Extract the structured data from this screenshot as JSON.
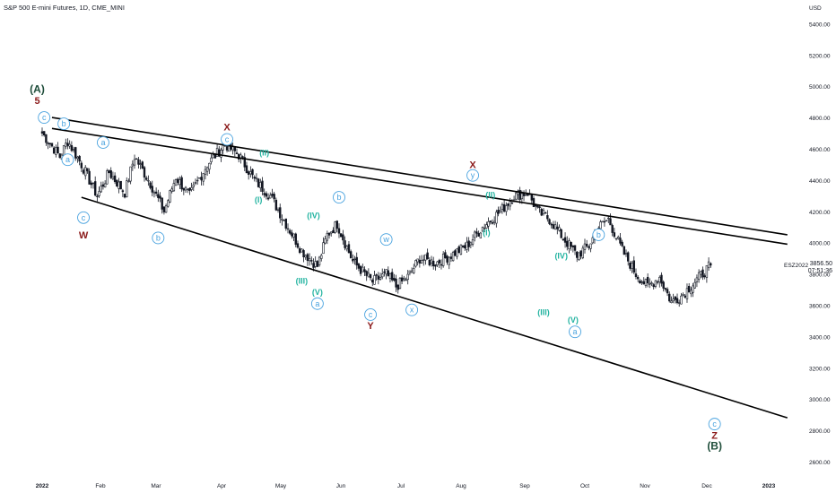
{
  "chart_data": {
    "type": "candlestick",
    "title": "S&P 500 E-mini Futures, 1D, CME_MINI",
    "currency": "USD",
    "ticker": "ESZ2022",
    "last_price": "3856.50",
    "countdown": "07:51:36",
    "x_ticks": [
      "2022",
      "Feb",
      "Mar",
      "Apr",
      "May",
      "Jun",
      "Jul",
      "Aug",
      "Sep",
      "Oct",
      "Nov",
      "Dec",
      "2023"
    ],
    "y_ticks": [
      "5400.00",
      "5200.00",
      "5000.00",
      "4800.00",
      "4600.00",
      "4400.00",
      "4200.00",
      "4000.00",
      "3800.00",
      "3600.00",
      "3400.00",
      "3200.00",
      "3000.00",
      "2800.00",
      "2600.00"
    ],
    "ylim": [
      2600,
      5400
    ],
    "anchors": [
      [
        0,
        4700
      ],
      [
        9,
        4550
      ],
      [
        13,
        4650
      ],
      [
        20,
        4500
      ],
      [
        28,
        4300
      ],
      [
        34,
        4450
      ],
      [
        42,
        4320
      ],
      [
        47,
        4550
      ],
      [
        55,
        4380
      ],
      [
        62,
        4200
      ],
      [
        68,
        4420
      ],
      [
        75,
        4300
      ],
      [
        84,
        4500
      ],
      [
        93,
        4630
      ],
      [
        100,
        4560
      ],
      [
        108,
        4400
      ],
      [
        116,
        4300
      ],
      [
        125,
        4100
      ],
      [
        132,
        3950
      ],
      [
        140,
        3850
      ],
      [
        145,
        4050
      ],
      [
        150,
        4120
      ],
      [
        158,
        3880
      ],
      [
        168,
        3750
      ],
      [
        175,
        3800
      ],
      [
        180,
        3720
      ],
      [
        186,
        3780
      ],
      [
        192,
        3900
      ],
      [
        200,
        3870
      ],
      [
        208,
        3920
      ],
      [
        216,
        3980
      ],
      [
        224,
        4100
      ],
      [
        233,
        4200
      ],
      [
        240,
        4300
      ],
      [
        247,
        4320
      ],
      [
        252,
        4200
      ],
      [
        258,
        4150
      ],
      [
        265,
        4030
      ],
      [
        272,
        3920
      ],
      [
        278,
        3980
      ],
      [
        283,
        4100
      ],
      [
        288,
        4150
      ],
      [
        295,
        3950
      ],
      [
        302,
        3800
      ],
      [
        308,
        3720
      ],
      [
        314,
        3780
      ],
      [
        320,
        3620
      ],
      [
        325,
        3660
      ],
      [
        332,
        3750
      ],
      [
        340,
        3856
      ]
    ],
    "lines": [
      {
        "name": "upper-trend",
        "points": [
          [
            5,
            4800
          ],
          [
            379,
            4050
          ]
        ]
      },
      {
        "name": "mid-trend",
        "points": [
          [
            5,
            4730
          ],
          [
            379,
            3990
          ]
        ]
      },
      {
        "name": "lower-trend",
        "points": [
          [
            20,
            4290
          ],
          [
            379,
            2880
          ]
        ]
      }
    ],
    "labels": [
      {
        "text": "(A)",
        "day": -2.5,
        "price": 4980,
        "color": "#1e4d3a",
        "style": "plain",
        "size": 12
      },
      {
        "text": "5",
        "day": -2.5,
        "price": 4910,
        "color": "#8b1a1a",
        "style": "plain",
        "size": 11
      },
      {
        "text": "c",
        "day": 1,
        "price": 4800,
        "color": "#4aa3df",
        "style": "circle",
        "size": 9
      },
      {
        "text": "b",
        "day": 11,
        "price": 4760,
        "color": "#4aa3df",
        "style": "circle",
        "size": 9
      },
      {
        "text": "a",
        "day": 13,
        "price": 4530,
        "color": "#4aa3df",
        "style": "circle",
        "size": 9
      },
      {
        "text": "a",
        "day": 31,
        "price": 4640,
        "color": "#4aa3df",
        "style": "circle",
        "size": 9
      },
      {
        "text": "c",
        "day": 21,
        "price": 4160,
        "color": "#4aa3df",
        "style": "circle",
        "size": 9
      },
      {
        "text": "W",
        "day": 21,
        "price": 4050,
        "color": "#8b1a1a",
        "style": "plain",
        "size": 11
      },
      {
        "text": "b",
        "day": 59,
        "price": 4030,
        "color": "#4aa3df",
        "style": "circle",
        "size": 9
      },
      {
        "text": "X",
        "day": 94,
        "price": 4740,
        "color": "#8b1a1a",
        "style": "plain",
        "size": 11
      },
      {
        "text": "c",
        "day": 94,
        "price": 4660,
        "color": "#4aa3df",
        "style": "circle",
        "size": 9
      },
      {
        "text": "(II)",
        "day": 113,
        "price": 4580,
        "color": "#22b3a0",
        "style": "plain",
        "size": 9
      },
      {
        "text": "(I)",
        "day": 110,
        "price": 4280,
        "color": "#22b3a0",
        "style": "plain",
        "size": 9
      },
      {
        "text": "b",
        "day": 151,
        "price": 4290,
        "color": "#4aa3df",
        "style": "circle",
        "size": 9
      },
      {
        "text": "(IV)",
        "day": 138,
        "price": 4180,
        "color": "#22b3a0",
        "style": "plain",
        "size": 9
      },
      {
        "text": "(III)",
        "day": 132,
        "price": 3760,
        "color": "#22b3a0",
        "style": "plain",
        "size": 9
      },
      {
        "text": "(V)",
        "day": 140,
        "price": 3690,
        "color": "#22b3a0",
        "style": "plain",
        "size": 9
      },
      {
        "text": "a",
        "day": 140,
        "price": 3610,
        "color": "#4aa3df",
        "style": "circle",
        "size": 9
      },
      {
        "text": "w",
        "day": 175,
        "price": 4020,
        "color": "#4aa3df",
        "style": "circle",
        "size": 9
      },
      {
        "text": "c",
        "day": 167,
        "price": 3540,
        "color": "#4aa3df",
        "style": "circle",
        "size": 9
      },
      {
        "text": "Y",
        "day": 167,
        "price": 3470,
        "color": "#8b1a1a",
        "style": "plain",
        "size": 11
      },
      {
        "text": "x",
        "day": 188,
        "price": 3570,
        "color": "#4aa3df",
        "style": "circle",
        "size": 9
      },
      {
        "text": "X",
        "day": 219,
        "price": 4500,
        "color": "#8b1a1a",
        "style": "plain",
        "size": 11
      },
      {
        "text": "y",
        "day": 219,
        "price": 4430,
        "color": "#4aa3df",
        "style": "circle",
        "size": 9
      },
      {
        "text": "(II)",
        "day": 228,
        "price": 4310,
        "color": "#22b3a0",
        "style": "plain",
        "size": 9
      },
      {
        "text": "(I)",
        "day": 226,
        "price": 4070,
        "color": "#22b3a0",
        "style": "plain",
        "size": 9
      },
      {
        "text": "(IV)",
        "day": 264,
        "price": 3920,
        "color": "#22b3a0",
        "style": "plain",
        "size": 9
      },
      {
        "text": "(III)",
        "day": 255,
        "price": 3560,
        "color": "#22b3a0",
        "style": "plain",
        "size": 9
      },
      {
        "text": "(V)",
        "day": 270,
        "price": 3510,
        "color": "#22b3a0",
        "style": "plain",
        "size": 9
      },
      {
        "text": "a",
        "day": 271,
        "price": 3430,
        "color": "#4aa3df",
        "style": "circle",
        "size": 9
      },
      {
        "text": "b",
        "day": 283,
        "price": 4050,
        "color": "#4aa3df",
        "style": "circle",
        "size": 9
      },
      {
        "text": "c",
        "day": 342,
        "price": 2840,
        "color": "#4aa3df",
        "style": "circle",
        "size": 9
      },
      {
        "text": "Z",
        "day": 342,
        "price": 2770,
        "color": "#8b1a1a",
        "style": "plain",
        "size": 11
      },
      {
        "text": "(B)",
        "day": 342,
        "price": 2700,
        "color": "#1e4d3a",
        "style": "plain",
        "size": 12
      }
    ],
    "colors": {
      "up": "#ffffff",
      "down": "#131722",
      "wick": "#131722",
      "trend": "#000000",
      "grid": "#ffffff",
      "axis_text": "#131722"
    }
  }
}
